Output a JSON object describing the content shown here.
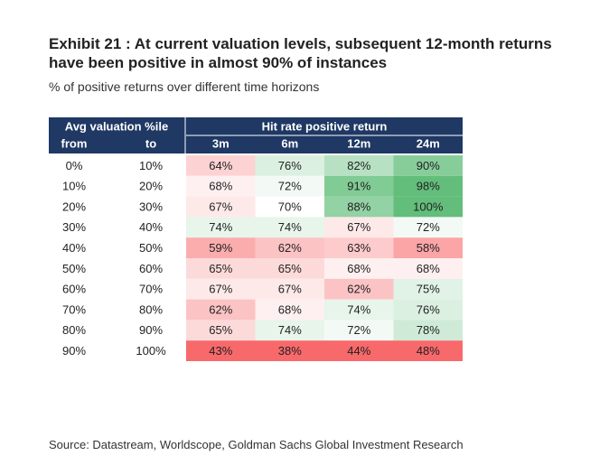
{
  "title": "Exhibit 21 : At current valuation levels, subsequent 12-month returns have been positive in almost 90% of instances",
  "subtitle": "% of positive returns over different time horizons",
  "source": "Source: Datastream, Worldscope, Goldman Sachs Global Investment Research",
  "colors": {
    "header_bg": "#1f3864",
    "header_text": "#ffffff",
    "high": "#63be7b",
    "mid": "#ffffff",
    "low": "#f8696b"
  },
  "chart_data": {
    "type": "table",
    "left_header": "Avg valuation %ile",
    "left_subheaders": [
      "from",
      "to"
    ],
    "group_header": "Hit rate positive return",
    "columns": [
      "3m",
      "6m",
      "12m",
      "24m"
    ],
    "rows": [
      {
        "from": "0%",
        "to": "10%",
        "values": [
          "64%",
          "76%",
          "82%",
          "90%"
        ]
      },
      {
        "from": "10%",
        "to": "20%",
        "values": [
          "68%",
          "72%",
          "91%",
          "98%"
        ]
      },
      {
        "from": "20%",
        "to": "30%",
        "values": [
          "67%",
          "70%",
          "88%",
          "100%"
        ]
      },
      {
        "from": "30%",
        "to": "40%",
        "values": [
          "74%",
          "74%",
          "67%",
          "72%"
        ]
      },
      {
        "from": "40%",
        "to": "50%",
        "values": [
          "59%",
          "62%",
          "63%",
          "58%"
        ]
      },
      {
        "from": "50%",
        "to": "60%",
        "values": [
          "65%",
          "65%",
          "68%",
          "68%"
        ]
      },
      {
        "from": "60%",
        "to": "70%",
        "values": [
          "67%",
          "67%",
          "62%",
          "75%"
        ]
      },
      {
        "from": "70%",
        "to": "80%",
        "values": [
          "62%",
          "68%",
          "74%",
          "76%"
        ]
      },
      {
        "from": "80%",
        "to": "90%",
        "values": [
          "65%",
          "74%",
          "72%",
          "78%"
        ]
      },
      {
        "from": "90%",
        "to": "100%",
        "values": [
          "43%",
          "38%",
          "44%",
          "48%"
        ]
      }
    ]
  }
}
